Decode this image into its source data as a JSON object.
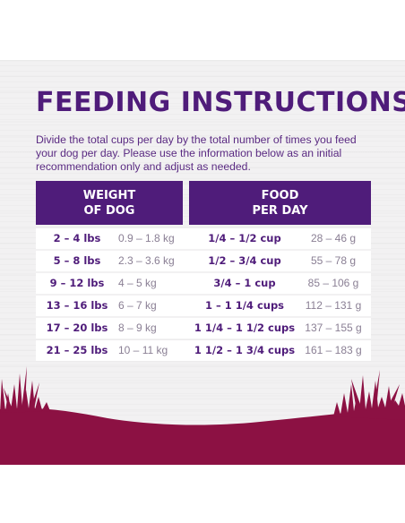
{
  "title": "FEEDING INSTRUCTIONS",
  "intro": "Divide the total cups per day by the total number of times you feed your dog per day. Please use the information below as an initial recommendation only and adjust as needed.",
  "headers": {
    "weight_line1": "WEIGHT",
    "weight_line2": "OF DOG",
    "food_line1": "FOOD",
    "food_line2": "PER DAY"
  },
  "rows": [
    {
      "lbs": "2 – 4 lbs",
      "kg": "0.9 – 1.8 kg",
      "cups": "1/4 – 1/2 cup",
      "grams": "28 – 46 g"
    },
    {
      "lbs": "5 – 8 lbs",
      "kg": "2.3 – 3.6 kg",
      "cups": "1/2 – 3/4 cup",
      "grams": "55 – 78 g"
    },
    {
      "lbs": "9 – 12 lbs",
      "kg": "4 – 5 kg",
      "cups": "3/4 – 1 cup",
      "grams": "85 – 106 g"
    },
    {
      "lbs": "13 – 16 lbs",
      "kg": "6 – 7 kg",
      "cups": "1 – 1 1/4 cups",
      "grams": "112 – 131 g"
    },
    {
      "lbs": "17 – 20 lbs",
      "kg": "8 – 9 kg",
      "cups": "1 1/4 – 1 1/2 cups",
      "grams": "137 – 155 g"
    },
    {
      "lbs": "21 – 25 lbs",
      "kg": "10 – 11 kg",
      "cups": "1 1/2 – 1 3/4 cups",
      "grams": "161 – 183 g"
    }
  ],
  "colors": {
    "brand_purple": "#4f1c7a",
    "grass_maroon": "#8c1143",
    "muted_text": "#8a7f94",
    "panel_bg": "#f2f1f2"
  }
}
